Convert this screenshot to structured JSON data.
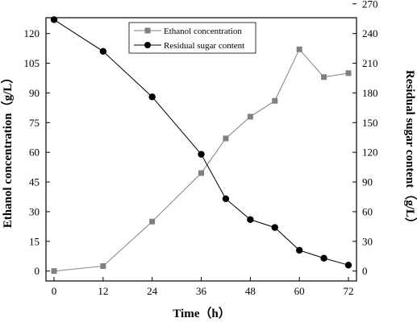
{
  "chart_data": {
    "type": "line",
    "title": "",
    "xlabel": "Time（h）",
    "ylabel_left": "Ethanol concentration（g/L）",
    "ylabel_right": "Residual sugar content（g/L）",
    "xlim": [
      0,
      72
    ],
    "xticks": [
      0,
      12,
      24,
      36,
      48,
      60,
      72
    ],
    "ylim_left": [
      -5,
      128
    ],
    "yticks_left": [
      0,
      15,
      30,
      45,
      60,
      75,
      90,
      105,
      120
    ],
    "ylim_right": [
      -10,
      256
    ],
    "yticks_right": [
      0,
      30,
      60,
      90,
      120,
      150,
      180,
      210,
      240,
      270
    ],
    "grid": false,
    "legend_position": "top-center",
    "series": [
      {
        "name": "Ethanol concentration",
        "axis": "left",
        "marker": "square",
        "color": "#808080",
        "x": [
          0,
          12,
          24,
          36,
          42,
          48,
          54,
          60,
          66,
          72
        ],
        "y": [
          0,
          2.5,
          25,
          49.5,
          67,
          78,
          86,
          112,
          98,
          100
        ]
      },
      {
        "name": "Residual sugar content",
        "axis": "right",
        "marker": "circle",
        "color": "#000000",
        "x": [
          0,
          12,
          24,
          36,
          42,
          48,
          54,
          60,
          66,
          72
        ],
        "y": [
          254,
          222,
          176,
          118,
          73,
          52,
          44,
          21,
          13,
          6
        ]
      }
    ]
  }
}
